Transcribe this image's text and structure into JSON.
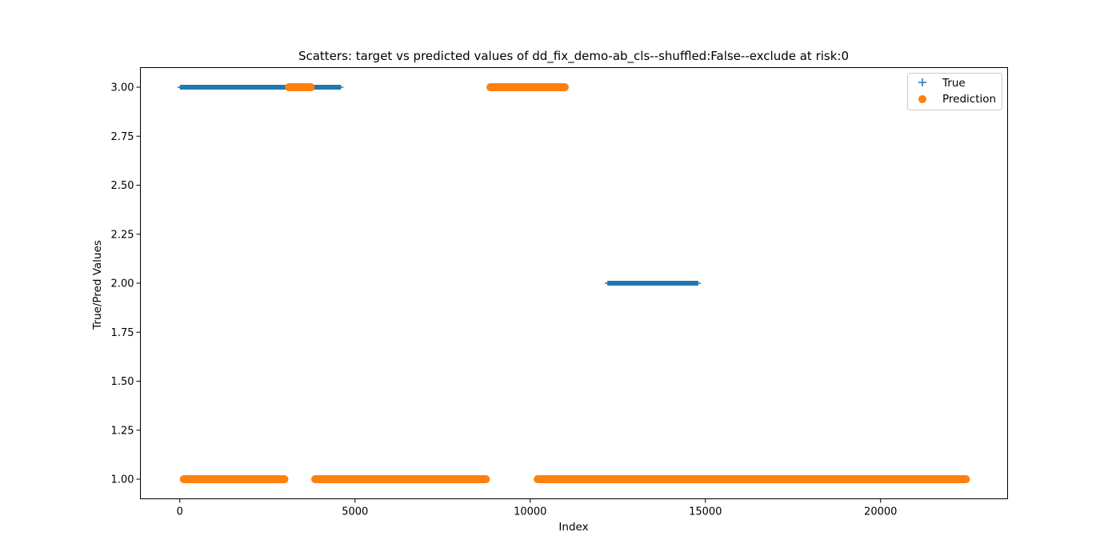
{
  "chart_data": {
    "type": "scatter",
    "title": "Scatters: target vs predicted values of dd_fix_demo-ab_cls--shuffled:False--exclude at risk:0",
    "xlabel": "Index",
    "ylabel": "True/Pred Values",
    "xlim": [
      -1125,
      23625
    ],
    "ylim": [
      0.9,
      3.1
    ],
    "xticks": [
      0,
      5000,
      10000,
      15000,
      20000
    ],
    "xtick_labels": [
      "0",
      "5000",
      "10000",
      "15000",
      "20000"
    ],
    "yticks": [
      1.0,
      1.25,
      1.5,
      1.75,
      2.0,
      2.25,
      2.5,
      2.75,
      3.0
    ],
    "ytick_labels": [
      "1.00",
      "1.25",
      "1.50",
      "1.75",
      "2.00",
      "2.25",
      "2.50",
      "2.75",
      "3.00"
    ],
    "grid": false,
    "legend_position": "top-right",
    "series": [
      {
        "name": "True",
        "marker": "plus",
        "color": "#1f77b4",
        "segments": [
          {
            "x_start": 0,
            "x_end": 4600,
            "y": 3.0
          },
          {
            "x_start": 12200,
            "x_end": 14800,
            "y": 2.0
          }
        ]
      },
      {
        "name": "Prediction",
        "marker": "circle",
        "color": "#ff7f0e",
        "segments": [
          {
            "x_start": 0,
            "x_end": 3100,
            "y": 1.0
          },
          {
            "x_start": 3000,
            "x_end": 3850,
            "y": 3.0
          },
          {
            "x_start": 3750,
            "x_end": 8850,
            "y": 1.0
          },
          {
            "x_start": 8750,
            "x_end": 11100,
            "y": 3.0
          },
          {
            "x_start": 10100,
            "x_end": 22550,
            "y": 1.0
          }
        ]
      }
    ]
  }
}
